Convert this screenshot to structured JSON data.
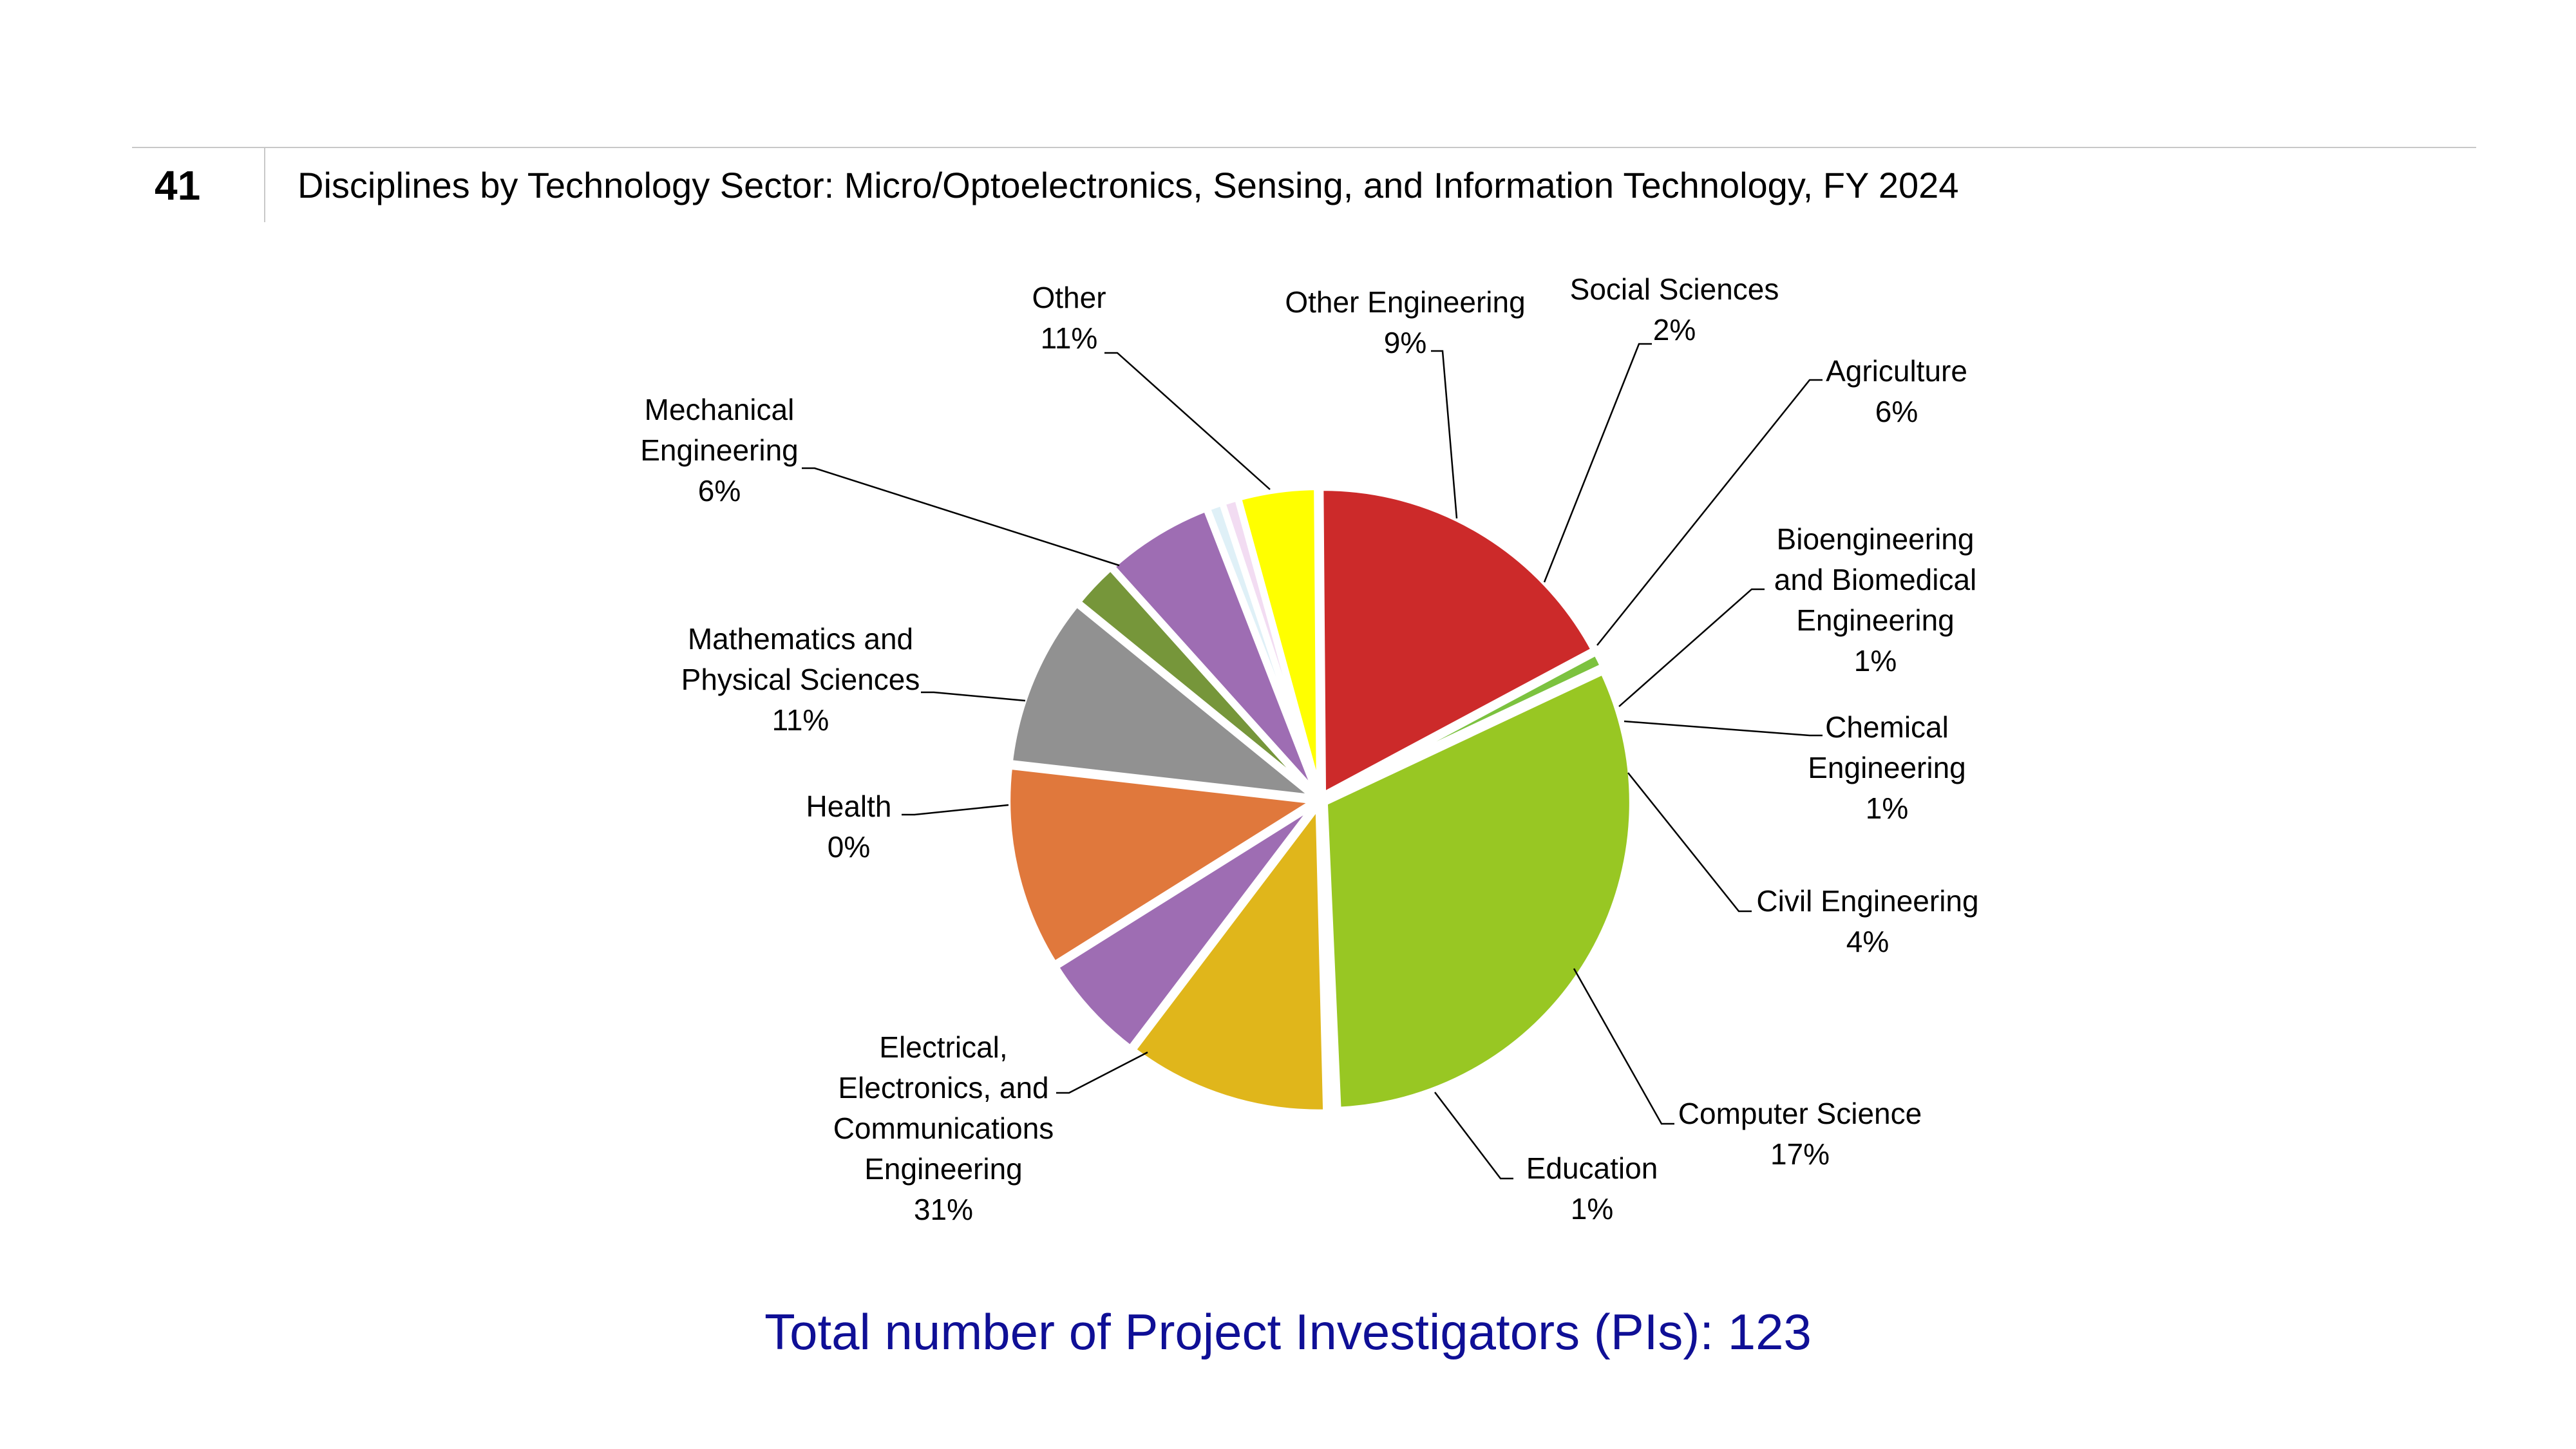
{
  "header": {
    "slide_number": "41",
    "title": "Disciplines by Technology Sector: Micro/Optoelectronics, Sensing, and Information Technology, FY 2024"
  },
  "footer": {
    "total_text": "Total number of Project Investigators (PIs): 123"
  },
  "chart_data": {
    "type": "pie",
    "title": "",
    "unit": "%",
    "slices": [
      {
        "label": "Other Engineering",
        "label_lines": [
          "Other Engineering"
        ],
        "value_label": "9%",
        "value": 8.94,
        "color": "#919191"
      },
      {
        "label": "Social Sciences",
        "label_lines": [
          "Social Sciences"
        ],
        "value_label": "2%",
        "value": 2.44,
        "color": "#76963a"
      },
      {
        "label": "Agriculture",
        "label_lines": [
          "Agriculture"
        ],
        "value_label": "6%",
        "value": 5.69,
        "color": "#9e6db3"
      },
      {
        "label": "Bioengineering and Biomedical Engineering",
        "label_lines": [
          "Bioengineering",
          "and Biomedical",
          "Engineering"
        ],
        "value_label": "1%",
        "value": 0.81,
        "color": "#dff0f7"
      },
      {
        "label": "Chemical Engineering",
        "label_lines": [
          "Chemical",
          "Engineering"
        ],
        "value_label": "1%",
        "value": 0.81,
        "color": "#f2dcf2"
      },
      {
        "label": "Civil Engineering",
        "label_lines": [
          "Civil Engineering"
        ],
        "value_label": "4%",
        "value": 4.07,
        "color": "#ffff00"
      },
      {
        "label": "Computer Science",
        "label_lines": [
          "Computer Science"
        ],
        "value_label": "17%",
        "value": 17.07,
        "color": "#cc2a2a"
      },
      {
        "label": "Education",
        "label_lines": [
          "Education"
        ],
        "value_label": "1%",
        "value": 0.81,
        "color": "#7cc23f"
      },
      {
        "label": "Electrical, Electronics, and Communications Engineering",
        "label_lines": [
          "Electrical,",
          "Electronics, and",
          "Communications",
          "Engineering"
        ],
        "value_label": "31%",
        "value": 30.89,
        "color": "#98c723"
      },
      {
        "label": "Health",
        "label_lines": [
          "Health"
        ],
        "value_label": "0%",
        "value": 0.3,
        "color": "#f7f7f7"
      },
      {
        "label": "Mathematics and Physical Sciences",
        "label_lines": [
          "Mathematics and",
          "Physical Sciences"
        ],
        "value_label": "11%",
        "value": 10.57,
        "color": "#e0b61b"
      },
      {
        "label": "Mechanical Engineering",
        "label_lines": [
          "Mechanical",
          "Engineering"
        ],
        "value_label": "6%",
        "value": 5.69,
        "color": "#9e6db3"
      },
      {
        "label": "Other",
        "label_lines": [
          "Other"
        ],
        "value_label": "11%",
        "value": 10.57,
        "color": "#e0783c"
      }
    ]
  }
}
